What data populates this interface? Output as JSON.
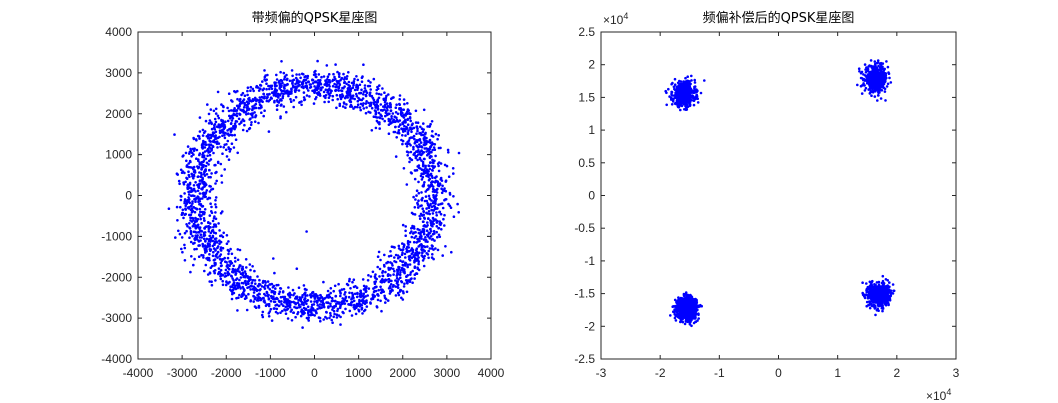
{
  "chart_data": [
    {
      "type": "scatter",
      "title": "带频偏的QPSK星座图",
      "xlabel": "",
      "ylabel": "",
      "xlim": [
        -4000,
        4000
      ],
      "ylim": [
        -4000,
        4000
      ],
      "x_ticks": [
        -4000,
        -3000,
        -2000,
        -1000,
        0,
        1000,
        2000,
        3000,
        4000
      ],
      "y_ticks": [
        -4000,
        -3000,
        -2000,
        -1000,
        0,
        1000,
        2000,
        3000,
        4000
      ],
      "x_tick_labels": [
        "-4000",
        "-3000",
        "-2000",
        "-1000",
        "0",
        "1000",
        "2000",
        "3000",
        "4000"
      ],
      "y_tick_labels": [
        "-4000",
        "-3000",
        "-2000",
        "-1000",
        "0",
        "1000",
        "2000",
        "3000",
        "4000"
      ],
      "grid": false,
      "color": "#0000ff",
      "series": [
        {
          "distribution": "ring",
          "center": [
            0,
            0
          ],
          "inner_radius": 2250,
          "outer_radius": 3150,
          "points": 3000
        },
        {
          "distribution": "point",
          "x": -180,
          "y": -880
        }
      ]
    },
    {
      "type": "scatter",
      "title": "频偏补偿后的QPSK星座图",
      "xlabel": "",
      "ylabel": "",
      "xlim": [
        -30000,
        30000
      ],
      "ylim": [
        -25000,
        25000
      ],
      "x_ticks": [
        -30000,
        -20000,
        -10000,
        0,
        10000,
        20000,
        30000
      ],
      "y_ticks": [
        -25000,
        -20000,
        -15000,
        -10000,
        -5000,
        0,
        5000,
        10000,
        15000,
        20000,
        25000
      ],
      "x_tick_labels": [
        "-3",
        "-2",
        "-1",
        "0",
        "1",
        "2",
        "3"
      ],
      "y_tick_labels": [
        "-2.5",
        "-2",
        "-1.5",
        "-1",
        "-0.5",
        "0",
        "0.5",
        "1",
        "1.5",
        "2",
        "2.5"
      ],
      "x_exponent": "×10",
      "x_exponent_power": "4",
      "y_exponent": "×10",
      "y_exponent_power": "4",
      "grid": false,
      "color": "#0000ff",
      "series": [
        {
          "distribution": "cluster",
          "center": [
            -16000,
            15500
          ],
          "spread": 2100,
          "points": 500
        },
        {
          "distribution": "cluster",
          "center": [
            16500,
            17800
          ],
          "spread": 2100,
          "points": 500
        },
        {
          "distribution": "cluster",
          "center": [
            -15500,
            -17200
          ],
          "spread": 1700,
          "points": 1300
        },
        {
          "distribution": "cluster",
          "center": [
            17000,
            -15200
          ],
          "spread": 1900,
          "points": 700
        }
      ]
    }
  ]
}
